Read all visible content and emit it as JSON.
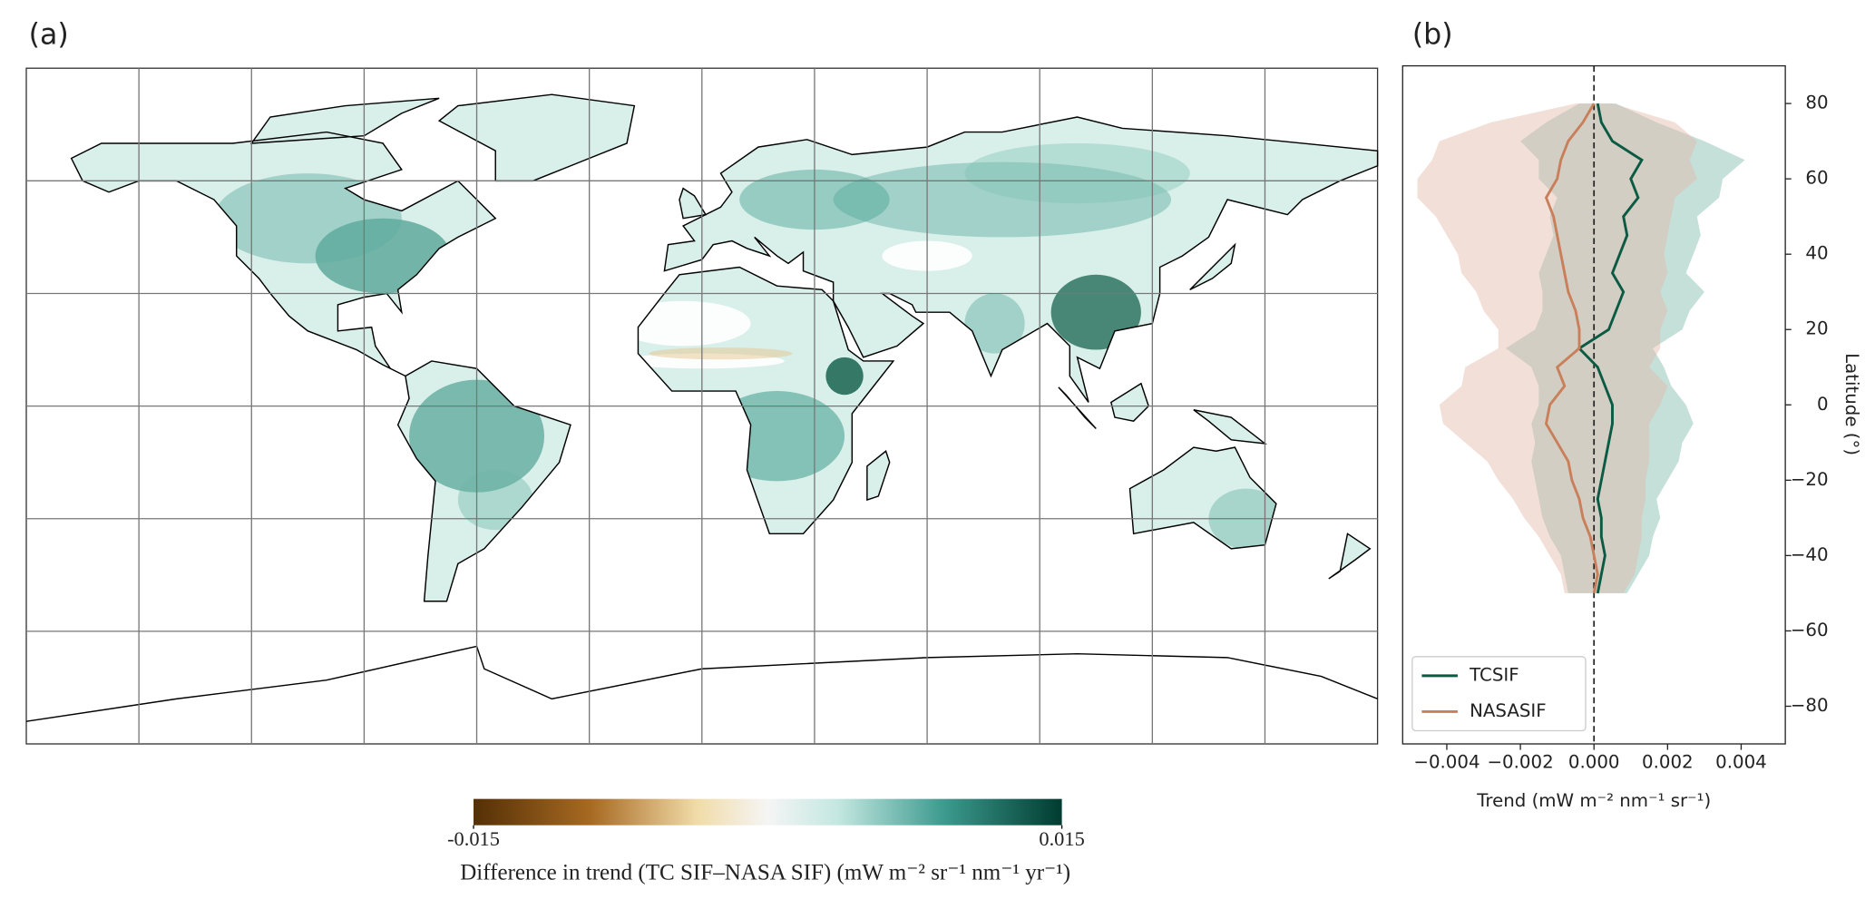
{
  "chart_data": [
    {
      "type": "map",
      "panel_label": "(a)",
      "colorbar": {
        "min": -0.015,
        "max": 0.015,
        "ticks": [
          -0.015,
          0.015
        ],
        "label": "Difference in trend (TC SIF–NASA SIF) (mW m⁻² sr⁻¹ nm⁻¹ yr⁻¹)"
      }
    },
    {
      "type": "line",
      "panel_label": "(b)",
      "xlabel": "Trend (mW m⁻² nm⁻¹ sr⁻¹)",
      "ylabel": "Latitude (°)",
      "xlim": [
        -0.0052,
        0.0052
      ],
      "ylim": [
        -90,
        90
      ],
      "xticks": [
        {
          "value": -0.004,
          "label": "−0.004"
        },
        {
          "value": -0.002,
          "label": "−0.002"
        },
        {
          "value": 0,
          "label": "0.000"
        },
        {
          "value": 0.002,
          "label": "0.002"
        },
        {
          "value": 0.004,
          "label": "0.004"
        }
      ],
      "yticks": [
        {
          "value": -80,
          "label": "−80"
        },
        {
          "value": -60,
          "label": "−60"
        },
        {
          "value": -40,
          "label": "−40"
        },
        {
          "value": -20,
          "label": "−20"
        },
        0,
        20,
        40,
        60,
        80
      ],
      "reference_line": 0,
      "legend": "lower left",
      "y": [
        80,
        75,
        70,
        65,
        60,
        55,
        50,
        45,
        40,
        35,
        30,
        25,
        20,
        15,
        10,
        5,
        0,
        -5,
        -10,
        -15,
        -20,
        -25,
        -30,
        -35,
        -40,
        -45,
        -50
      ],
      "series": [
        {
          "name": "TCSIF",
          "color": "#0b5a43",
          "band_color": "#7fb8aa",
          "values": [
            0.0001,
            0.0002,
            0.0005,
            0.0013,
            0.001,
            0.0012,
            0.0008,
            0.0009,
            0.0007,
            0.0005,
            0.0008,
            0.0006,
            0.0004,
            -0.0004,
            0.0001,
            0.0003,
            0.0005,
            0.0005,
            0.0004,
            0.0003,
            0.0002,
            0.0001,
            0.0002,
            0.0002,
            0.0003,
            0.0002,
            0.0001
          ],
          "spread": [
            0.0005,
            0.0015,
            0.0025,
            0.0028,
            0.0025,
            0.0022,
            0.002,
            0.002,
            0.002,
            0.002,
            0.0022,
            0.002,
            0.002,
            0.002,
            0.0018,
            0.0018,
            0.002,
            0.0022,
            0.002,
            0.002,
            0.0018,
            0.0016,
            0.0016,
            0.0014,
            0.0012,
            0.001,
            0.0008
          ]
        },
        {
          "name": "NASASIF",
          "color": "#c87f5a",
          "band_color": "#e3bba8",
          "values": [
            0.0,
            -0.0003,
            -0.0007,
            -0.0009,
            -0.001,
            -0.0013,
            -0.0011,
            -0.001,
            -0.0009,
            -0.0008,
            -0.0007,
            -0.0005,
            -0.0004,
            -0.0004,
            -0.001,
            -0.0008,
            -0.0012,
            -0.0013,
            -0.001,
            -0.0007,
            -0.0006,
            -0.0004,
            -0.0003,
            -0.0001,
            0.0,
            0.0001,
            0.0
          ],
          "spread": [
            0.0005,
            0.0025,
            0.0035,
            0.0035,
            0.0038,
            0.0035,
            0.0032,
            0.003,
            0.0028,
            0.0028,
            0.0025,
            0.0025,
            0.0022,
            0.0022,
            0.0025,
            0.0028,
            0.003,
            0.0028,
            0.0025,
            0.0022,
            0.002,
            0.0018,
            0.0016,
            0.0014,
            0.0012,
            0.001,
            0.0008
          ]
        }
      ]
    }
  ]
}
